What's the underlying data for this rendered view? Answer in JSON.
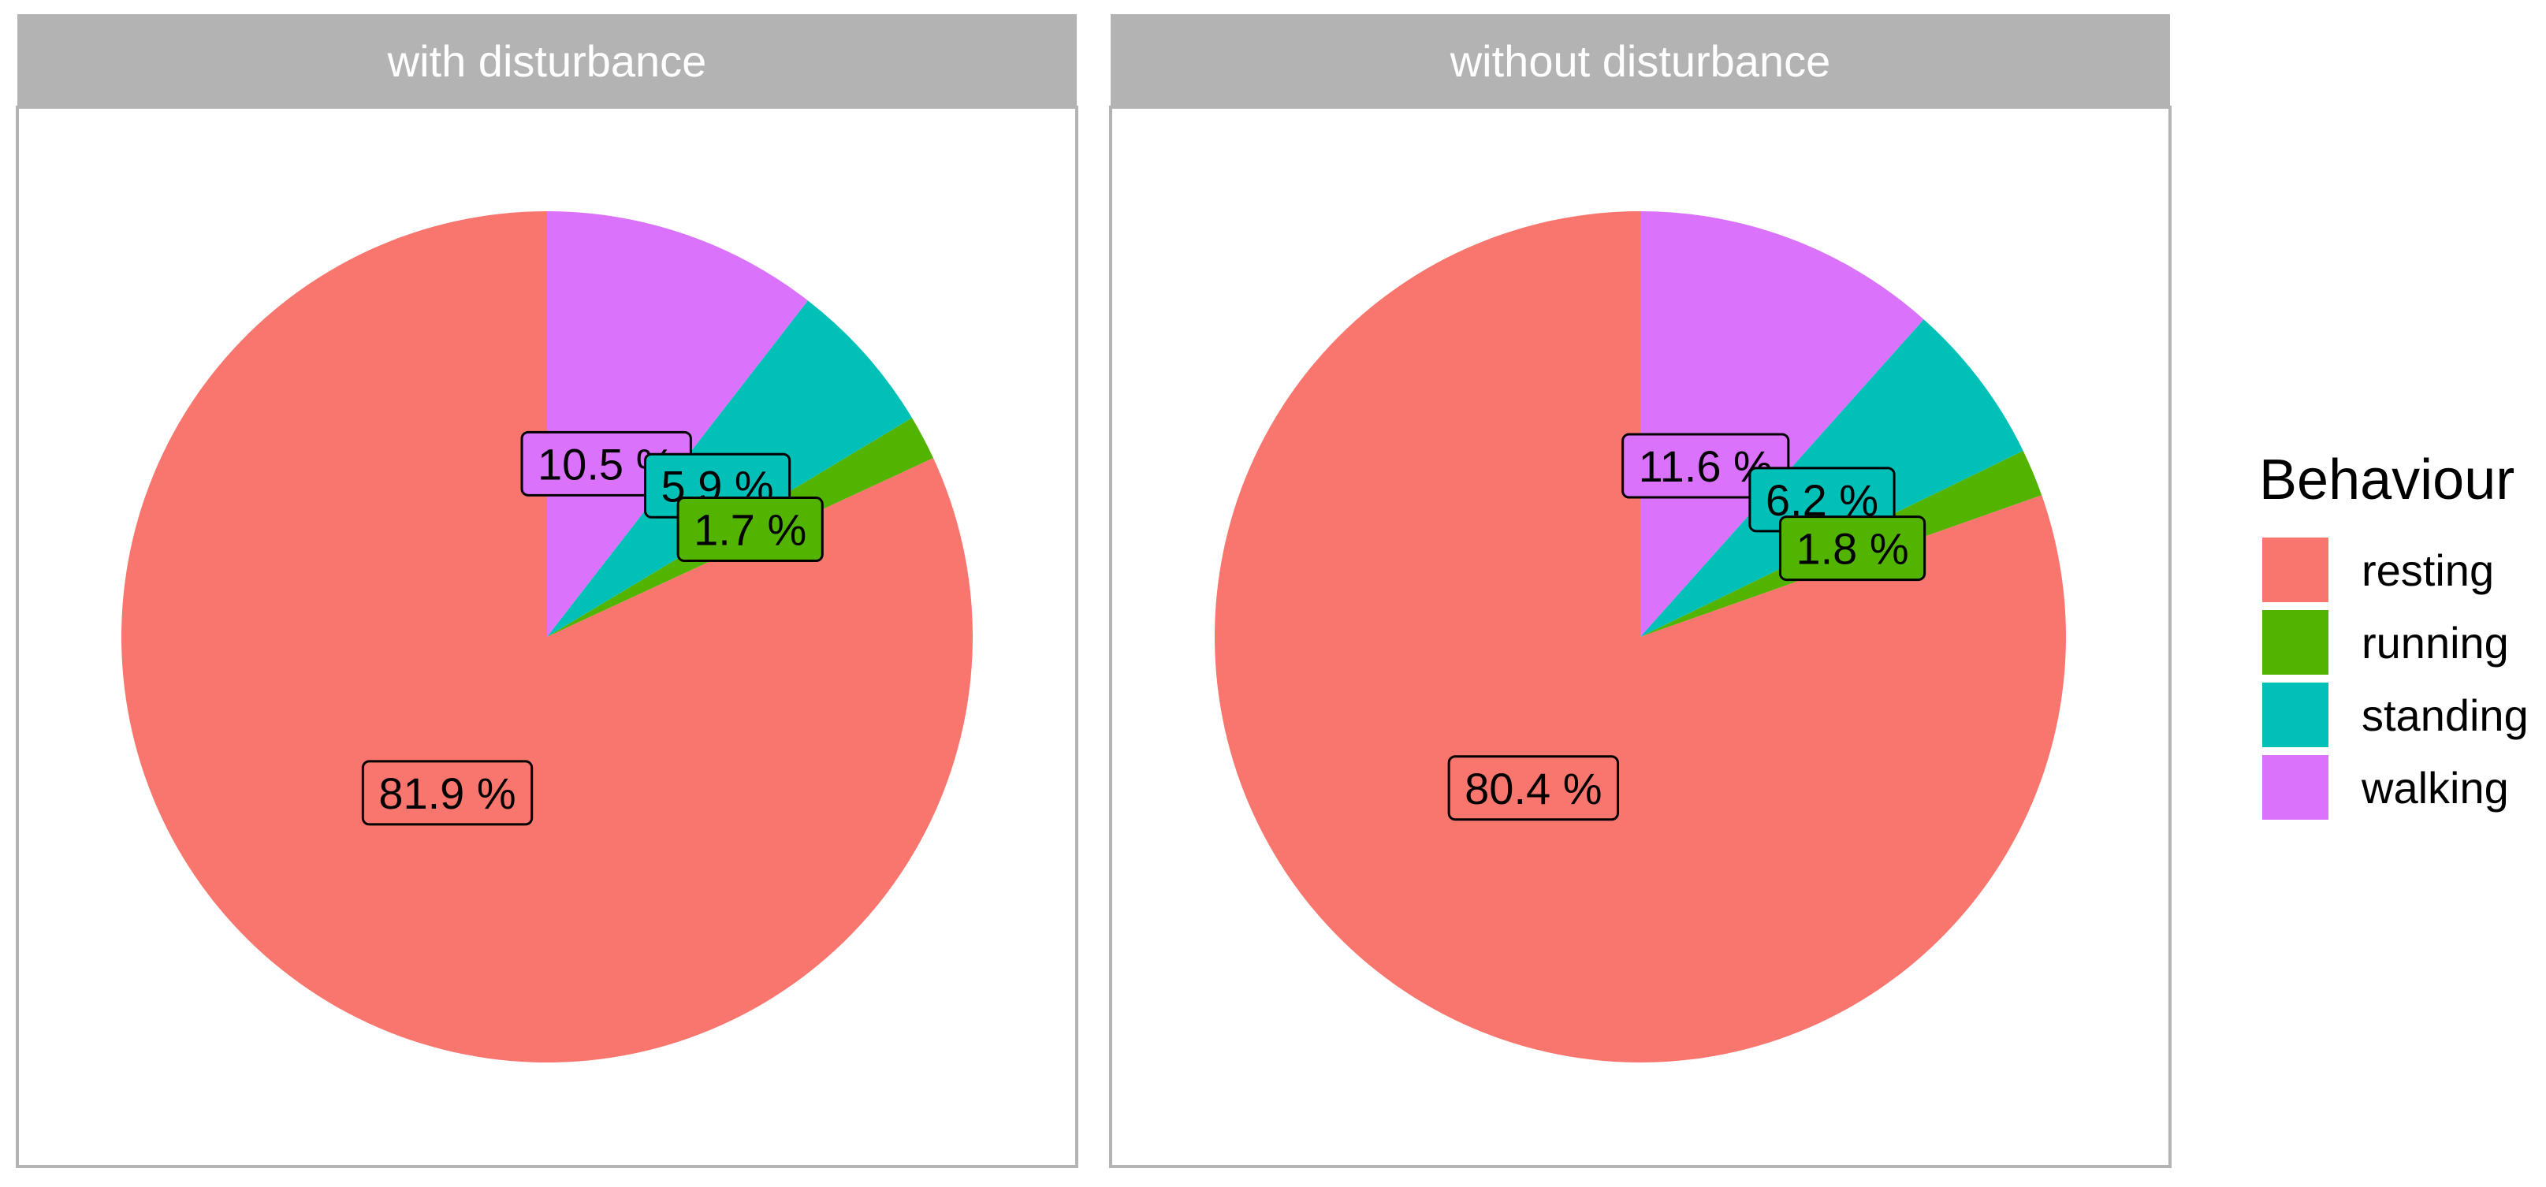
{
  "chart_data": {
    "type": "pie",
    "facets": [
      {
        "title": "with disturbance",
        "slices": [
          {
            "category": "resting",
            "value": 81.9,
            "label": "81.9 %"
          },
          {
            "category": "running",
            "value": 1.7,
            "label": "1.7 %"
          },
          {
            "category": "standing",
            "value": 5.9,
            "label": "5.9 %"
          },
          {
            "category": "walking",
            "value": 10.5,
            "label": "10.5 %"
          }
        ]
      },
      {
        "title": "without disturbance",
        "slices": [
          {
            "category": "resting",
            "value": 80.4,
            "label": "80.4 %"
          },
          {
            "category": "running",
            "value": 1.8,
            "label": "1.8 %"
          },
          {
            "category": "standing",
            "value": 6.2,
            "label": "6.2 %"
          },
          {
            "category": "walking",
            "value": 11.6,
            "label": "11.6 %"
          }
        ]
      }
    ],
    "legend": {
      "title": "Behaviour",
      "position": "right",
      "items": [
        {
          "label": "resting",
          "color": "#F8766D"
        },
        {
          "label": "running",
          "color": "#53B400"
        },
        {
          "label": "standing",
          "color": "#00C0B8"
        },
        {
          "label": "walking",
          "color": "#DA72FB"
        }
      ]
    },
    "strip_color": "#B3B3B3",
    "panel_border_color": "#B3B3B3"
  }
}
